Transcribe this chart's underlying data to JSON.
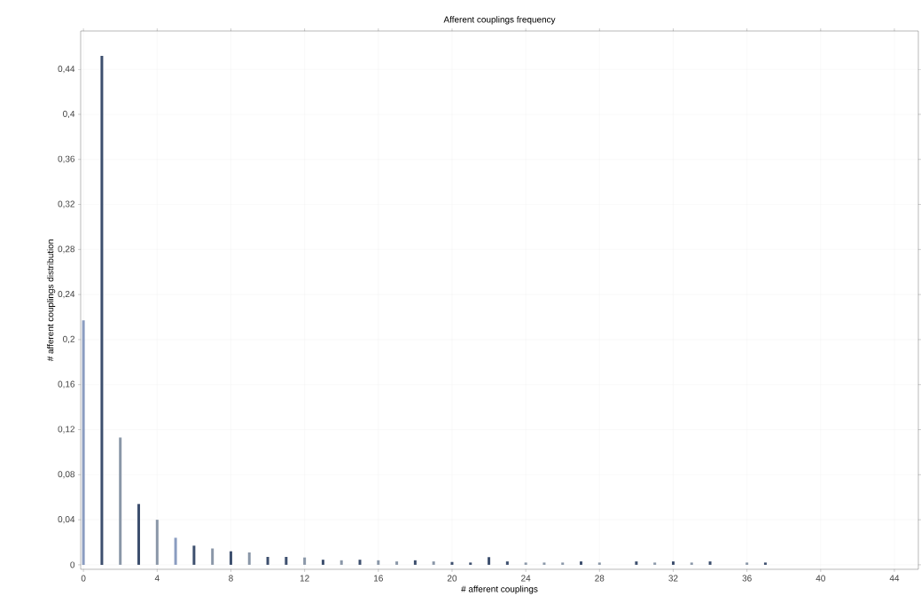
{
  "chart_data": {
    "type": "bar",
    "title": "Afferent couplings frequency",
    "xlabel": "# afferent couplings",
    "ylabel": "# afferent couplings distribution",
    "x": [
      0,
      1,
      2,
      3,
      4,
      5,
      6,
      7,
      8,
      9,
      10,
      11,
      12,
      13,
      14,
      15,
      16,
      17,
      18,
      19,
      20,
      21,
      22,
      23,
      24,
      25,
      26,
      27,
      28,
      29,
      30,
      31,
      32,
      33,
      34,
      35,
      36,
      37
    ],
    "values": [
      0.217,
      0.452,
      0.113,
      0.054,
      0.04,
      0.024,
      0.017,
      0.0145,
      0.012,
      0.011,
      0.007,
      0.007,
      0.0065,
      0.0045,
      0.004,
      0.0045,
      0.004,
      0.003,
      0.004,
      0.003,
      0.0025,
      0.002,
      0.0068,
      0.003,
      0.002,
      0.002,
      0.002,
      0.003,
      0.002,
      null,
      0.003,
      0.002,
      0.003,
      0.002,
      0.003,
      null,
      0.002,
      0.002
    ],
    "colors": [
      "#8a9cc0",
      "#3d4f6e",
      "#8a97a8",
      "#3d4f6e",
      "#8a97a8",
      "#8a9cc0",
      "#3d4f6e",
      "#8a97a8",
      "#3d4f6e",
      "#8a97a8",
      "#3d4f6e",
      "#3d4f6e",
      "#8a97a8",
      "#3d4f6e",
      "#8a97a8",
      "#3d4f6e",
      "#8a97a8",
      "#8a97a8",
      "#3d4f6e",
      "#8a97a8",
      "#3d4f6e",
      "#3d4f6e",
      "#3d4f6e",
      "#3d4f6e",
      "#8a97a8",
      "#8a97a8",
      "#8a97a8",
      "#3d4f6e",
      "#8a97a8",
      "#8a97a8",
      "#3d4f6e",
      "#8a97a8",
      "#3d4f6e",
      "#8a97a8",
      "#3d4f6e",
      "#8a97a8",
      "#8a97a8",
      "#3d4f6e"
    ],
    "xlim": [
      -0.15,
      45.3
    ],
    "ylim": [
      -0.004,
      0.474
    ],
    "xticks": [
      0,
      4,
      8,
      12,
      16,
      20,
      24,
      28,
      32,
      36,
      40,
      44
    ],
    "yticks": [
      0,
      {
        "value": 0.04,
        "label": "0,04"
      },
      {
        "value": 0.08,
        "label": "0,08"
      },
      {
        "value": 0.12,
        "label": "0,12"
      },
      {
        "value": 0.16,
        "label": "0,16"
      },
      {
        "value": 0.2,
        "label": "0,2"
      },
      {
        "value": 0.24,
        "label": "0,24"
      },
      {
        "value": 0.28,
        "label": "0,28"
      },
      {
        "value": 0.32,
        "label": "0,32"
      },
      {
        "value": 0.36,
        "label": "0,36"
      },
      {
        "value": 0.4,
        "label": "0,4"
      },
      {
        "value": 0.44,
        "label": "0,44"
      }
    ],
    "grid": true
  }
}
